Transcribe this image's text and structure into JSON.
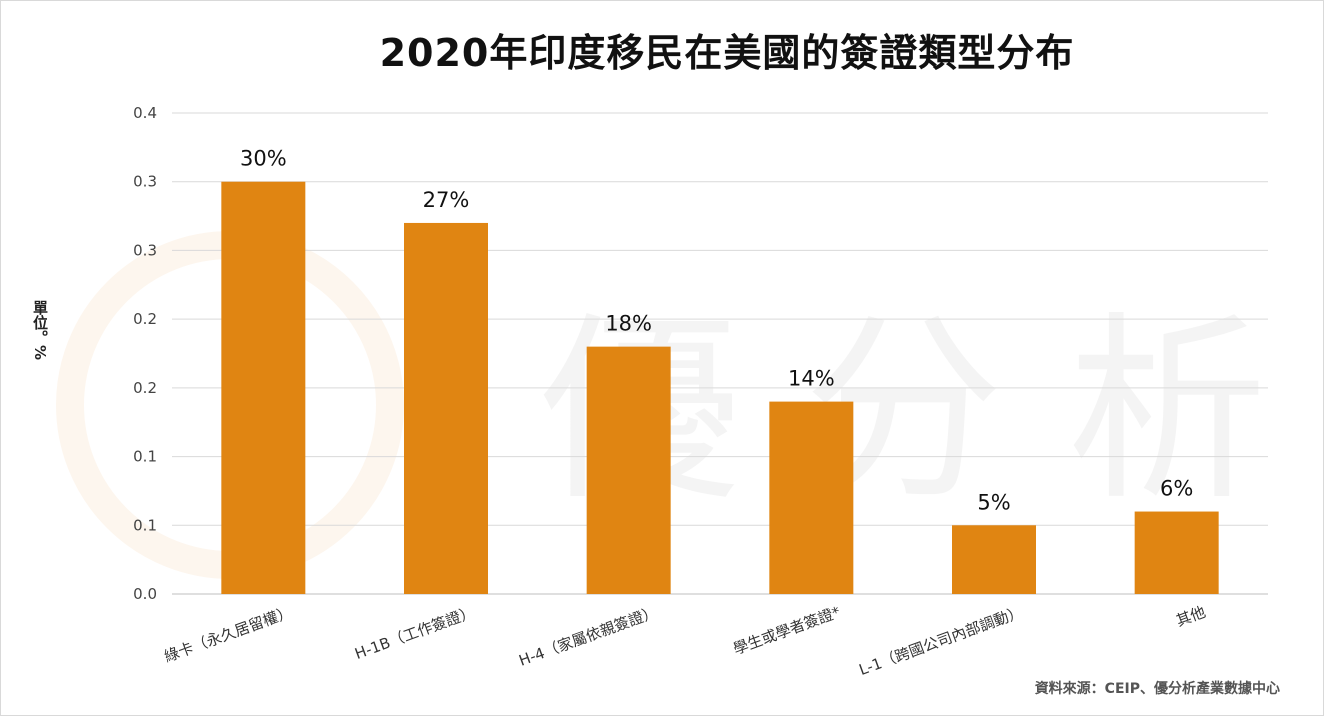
{
  "chart_data": {
    "type": "bar",
    "title": "2020年印度移民在美國的簽證類型分布",
    "ylabel": "單位。%",
    "categories": [
      "綠卡（永久居留權）",
      "H-1B（工作簽證）",
      "H-4（家屬依親簽證）",
      "學生或學者簽證*",
      "L-1（跨國公司內部調動）",
      "其他"
    ],
    "values": [
      0.3,
      0.27,
      0.18,
      0.14,
      0.05,
      0.06
    ],
    "data_labels": [
      "30%",
      "27%",
      "18%",
      "14%",
      "5%",
      "6%"
    ],
    "y_ticks": [
      "0.0",
      "0.1",
      "0.1",
      "0.2",
      "0.2",
      "0.3",
      "0.3",
      "0.4"
    ],
    "ylim": [
      0,
      0.35
    ],
    "grid": true,
    "legend": "none",
    "bar_color": "#e08512",
    "source": "資料來源：CEIP、優分析產業數據中心"
  }
}
